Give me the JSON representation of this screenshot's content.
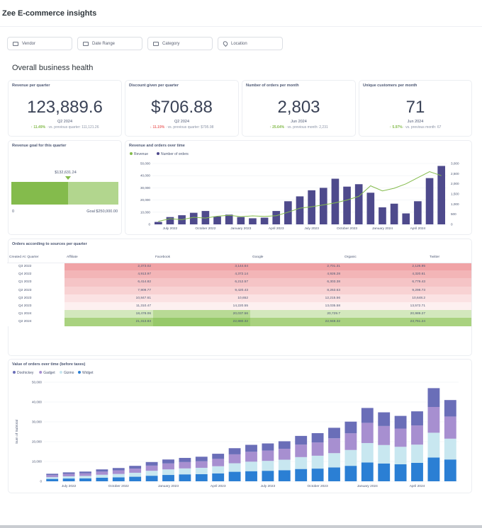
{
  "app": {
    "title": "Zee E-commerce insights"
  },
  "filters": [
    {
      "label": "Vendor",
      "icon": "calendar-icon"
    },
    {
      "label": "Date Range",
      "icon": "calendar-icon"
    },
    {
      "label": "Category",
      "icon": "calendar-icon"
    },
    {
      "label": "Location",
      "icon": "location-pin-icon"
    }
  ],
  "section": {
    "title": "Overall business health"
  },
  "kpis": [
    {
      "title": "Revenue per quarter",
      "value": "123,889.6",
      "period": "Q2 2024",
      "change": "↑ 11.49%",
      "direction": "up",
      "compare": "vs. previous quarter: 111,121.26"
    },
    {
      "title": "Discount given per quarter",
      "value": "$706.88",
      "period": "Q2 2024",
      "change": "↓ 11.19%",
      "direction": "down",
      "compare": "vs. previous quarter: $795.98"
    },
    {
      "title": "Number of orders per month",
      "value": "2,803",
      "period": "Jun 2024",
      "change": "↑ 25.64%",
      "direction": "up",
      "compare": "vs. previous month: 2,231"
    },
    {
      "title": "Unique customers per month",
      "value": "71",
      "period": "Jun 2024",
      "change": "↑ 5.97%",
      "direction": "up",
      "compare": "vs. previous month: 67"
    }
  ],
  "goal": {
    "title": "Revenue goal for this quarter",
    "current_label": "$132,631.24",
    "zero_label": "0",
    "goal_label": "Goal $250,000.00",
    "current": 132631.24,
    "target": 250000,
    "colors": {
      "fill": "#84bb4c",
      "rest": "#b2d68e"
    }
  },
  "table": {
    "title": "Orders according to sources per quarter",
    "columns": [
      "Created At: Quarter",
      "Affiliate",
      "Facebook",
      "Google",
      "Organic",
      "Twitter"
    ],
    "rows": [
      {
        "q": "Q3 2022",
        "v": [
          "2,373.02",
          "3,144.64",
          "2,701.31",
          "2,126.95",
          ""
        ],
        "c": [
          "#f0a3a6",
          "#f0a3a6",
          "#f0a3a6",
          "#f0a3a6",
          "#f0a3a6"
        ]
      },
      {
        "q": "Q4 2022",
        "v": [
          "4,913.97",
          "4,372.14",
          "4,926.28",
          "4,320.61",
          ""
        ],
        "c": [
          "#f3b5b7",
          "#f3b5b7",
          "#f3b5b7",
          "#f3b5b7",
          "#f3b5b7"
        ]
      },
      {
        "q": "Q1 2023",
        "v": [
          "6,414.82",
          "6,212.57",
          "6,303.38",
          "6,779.43",
          ""
        ],
        "c": [
          "#f5c4c6",
          "#f5c4c6",
          "#f5c4c6",
          "#f5c4c6",
          "#f5c4c6"
        ]
      },
      {
        "q": "Q2 2023",
        "v": [
          "7,909.77",
          "9,420.43",
          "8,263.63",
          "9,298.73",
          ""
        ],
        "c": [
          "#f8d2d3",
          "#f8d2d3",
          "#f8d2d3",
          "#f8d2d3",
          "#f8d2d3"
        ]
      },
      {
        "q": "Q3 2023",
        "v": [
          "10,847.61",
          "10,652",
          "12,215.56",
          "10,648.2",
          ""
        ],
        "c": [
          "#fbe2e3",
          "#fbe2e3",
          "#fbe2e3",
          "#fbe2e3",
          "#fbe2e3"
        ]
      },
      {
        "q": "Q4 2023",
        "v": [
          "11,310.47",
          "14,220.55",
          "13,035.58",
          "13,572.71",
          ""
        ],
        "c": [
          "#fdf0f0",
          "#fdf0f0",
          "#fdf0f0",
          "#fdf0f0",
          "#fdf0f0"
        ]
      },
      {
        "q": "Q1 2024",
        "v": [
          "18,478.06",
          "20,037.56",
          "20,729.7",
          "20,989.27",
          ""
        ],
        "c": [
          "#d3e8bd",
          "#b8da95",
          "#d3e8bd",
          "#d3e8bd",
          "#d3e8bd"
        ]
      },
      {
        "q": "Q2 2024",
        "v": [
          "21,313.83",
          "22,880.32",
          "22,948.32",
          "23,761.24",
          ""
        ],
        "c": [
          "#a9d27f",
          "#97c96a",
          "#a9d27f",
          "#a9d27f",
          "#a9d27f"
        ]
      }
    ]
  },
  "combo": {
    "title": "Revenue and orders over time",
    "legend": [
      "Revenue",
      "Number of orders"
    ]
  },
  "stacked": {
    "title": "Value of orders over time (before taxes)",
    "legend": [
      "Doohickey",
      "Gadget",
      "Gizmo",
      "Widget"
    ]
  },
  "chart_data": [
    {
      "type": "bar",
      "title": "Revenue and orders over time",
      "xlabel": "",
      "ylabel": "",
      "categories": [
        "Jun 2022",
        "Jul 2022",
        "Aug 2022",
        "Sep 2022",
        "Oct 2022",
        "Nov 2022",
        "Dec 2022",
        "Jan 2023",
        "Feb 2023",
        "Mar 2023",
        "Apr 2023",
        "May 2023",
        "Jun 2023",
        "Jul 2023",
        "Aug 2023",
        "Sep 2023",
        "Oct 2023",
        "Nov 2023",
        "Dec 2023",
        "Jan 2024",
        "Feb 2024",
        "Mar 2024",
        "Apr 2024",
        "May 2024",
        "Jun 2024"
      ],
      "tick_labels": [
        "July 2022",
        "October 2022",
        "January 2023",
        "April 2023",
        "July 2023",
        "October 2023",
        "January 2024",
        "April 2024"
      ],
      "tick_indices": [
        1,
        4,
        7,
        10,
        13,
        16,
        19,
        22
      ],
      "series": [
        {
          "name": "Number of orders",
          "axis": "left",
          "kind": "bar",
          "color": "#4e4a8c",
          "values": [
            2000,
            6000,
            7500,
            9500,
            11000,
            6500,
            8000,
            6000,
            5000,
            5500,
            11000,
            19000,
            23000,
            28000,
            30000,
            37500,
            31000,
            33000,
            26000,
            14000,
            17000,
            9000,
            19000,
            38000,
            48000
          ]
        },
        {
          "name": "Revenue",
          "axis": "right",
          "kind": "line",
          "color": "#84bb4c",
          "values": [
            150,
            280,
            230,
            350,
            310,
            400,
            450,
            380,
            420,
            390,
            430,
            600,
            800,
            870,
            960,
            1060,
            1200,
            1380,
            1900,
            1650,
            1780,
            2000,
            2300,
            2600,
            2400
          ]
        }
      ],
      "ylim_left": [
        0,
        50000
      ],
      "yticks_left": [
        "0",
        "10,000",
        "20,000",
        "30,000",
        "40,000",
        "50,000"
      ],
      "ylim_right": [
        0,
        3000
      ],
      "yticks_right": [
        "0",
        "500",
        "1,000",
        "1,500",
        "2,000",
        "2,500",
        "3,000"
      ]
    },
    {
      "type": "bar",
      "stacked": true,
      "title": "Value of orders over time (before taxes)",
      "xlabel": "",
      "ylabel": "Sum of Subtotal",
      "categories": [
        "Jun 2022",
        "Jul 2022",
        "Aug 2022",
        "Sep 2022",
        "Oct 2022",
        "Nov 2022",
        "Dec 2022",
        "Jan 2023",
        "Feb 2023",
        "Mar 2023",
        "Apr 2023",
        "May 2023",
        "Jun 2023",
        "Jul 2023",
        "Aug 2023",
        "Sep 2023",
        "Oct 2023",
        "Nov 2023",
        "Dec 2023",
        "Jan 2024",
        "Feb 2024",
        "Mar 2024",
        "Apr 2024",
        "May 2024",
        "Jun 2024"
      ],
      "tick_labels": [
        "July 2022",
        "October 2022",
        "January 2023",
        "April 2023",
        "July 2023",
        "October 2023",
        "January 2024",
        "April 2024"
      ],
      "tick_indices": [
        1,
        4,
        7,
        10,
        13,
        16,
        19,
        22
      ],
      "series": [
        {
          "name": "Widget",
          "color": "#2b7fd4",
          "values": [
            1200,
            1400,
            1500,
            1800,
            2000,
            2300,
            2800,
            3200,
            3500,
            3600,
            4000,
            4800,
            5100,
            5300,
            5600,
            6200,
            6400,
            7000,
            7800,
            9500,
            9000,
            8600,
            9300,
            12000,
            11000
          ]
        },
        {
          "name": "Gizmo",
          "color": "#c8e7f0",
          "values": [
            900,
            1100,
            1200,
            1500,
            1700,
            2000,
            2500,
            2800,
            3000,
            3200,
            3600,
            4300,
            4800,
            5000,
            5300,
            6000,
            6500,
            7200,
            8000,
            9800,
            9300,
            8800,
            9200,
            12500,
            10500
          ]
        },
        {
          "name": "Gadget",
          "color": "#a78fd0",
          "values": [
            1000,
            1200,
            1300,
            1600,
            1800,
            2100,
            2600,
            3000,
            3200,
            3300,
            3700,
            4500,
            5000,
            5200,
            5500,
            6300,
            6700,
            7500,
            8400,
            10200,
            9600,
            9200,
            9700,
            13000,
            11200
          ]
        },
        {
          "name": "Doohickey",
          "color": "#6a6eb8",
          "values": [
            700,
            800,
            900,
            1100,
            1200,
            1400,
            1800,
            2000,
            2100,
            2300,
            2600,
            3100,
            3500,
            3600,
            3800,
            4400,
            4700,
            5300,
            5900,
            7500,
            6900,
            6400,
            7100,
            9500,
            8300
          ]
        }
      ],
      "ylim": [
        0,
        50000
      ],
      "yticks": [
        "0",
        "10,000",
        "20,000",
        "30,000",
        "40,000",
        "50,000"
      ]
    }
  ]
}
